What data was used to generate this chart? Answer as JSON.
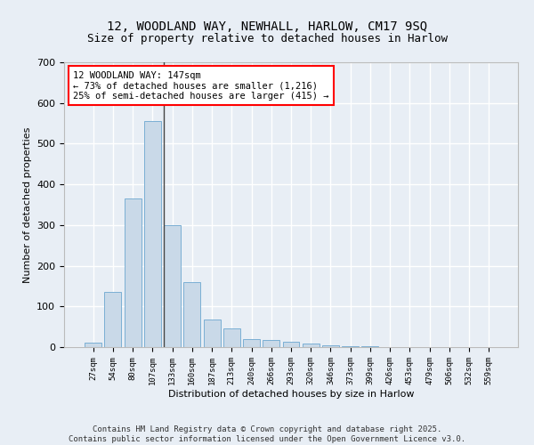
{
  "title_line1": "12, WOODLAND WAY, NEWHALL, HARLOW, CM17 9SQ",
  "title_line2": "Size of property relative to detached houses in Harlow",
  "xlabel": "Distribution of detached houses by size in Harlow",
  "ylabel": "Number of detached properties",
  "bar_color": "#c9d9e8",
  "bar_edge_color": "#7bafd4",
  "background_color": "#e8eef5",
  "grid_color": "#ffffff",
  "categories": [
    "27sqm",
    "54sqm",
    "80sqm",
    "107sqm",
    "133sqm",
    "160sqm",
    "187sqm",
    "213sqm",
    "240sqm",
    "266sqm",
    "293sqm",
    "320sqm",
    "346sqm",
    "373sqm",
    "399sqm",
    "426sqm",
    "453sqm",
    "479sqm",
    "506sqm",
    "532sqm",
    "559sqm"
  ],
  "values": [
    10,
    135,
    365,
    555,
    300,
    160,
    68,
    46,
    20,
    17,
    14,
    8,
    5,
    3,
    2,
    1,
    1,
    1,
    0,
    0,
    1
  ],
  "ylim": [
    0,
    700
  ],
  "yticks": [
    0,
    100,
    200,
    300,
    400,
    500,
    600,
    700
  ],
  "annotation_text": "12 WOODLAND WAY: 147sqm\n← 73% of detached houses are smaller (1,216)\n25% of semi-detached houses are larger (415) →",
  "vline_index": 4,
  "footnote": "Contains HM Land Registry data © Crown copyright and database right 2025.\nContains public sector information licensed under the Open Government Licence v3.0.",
  "title_fontsize": 10,
  "subtitle_fontsize": 9,
  "annotation_fontsize": 7.5,
  "footnote_fontsize": 6.5
}
